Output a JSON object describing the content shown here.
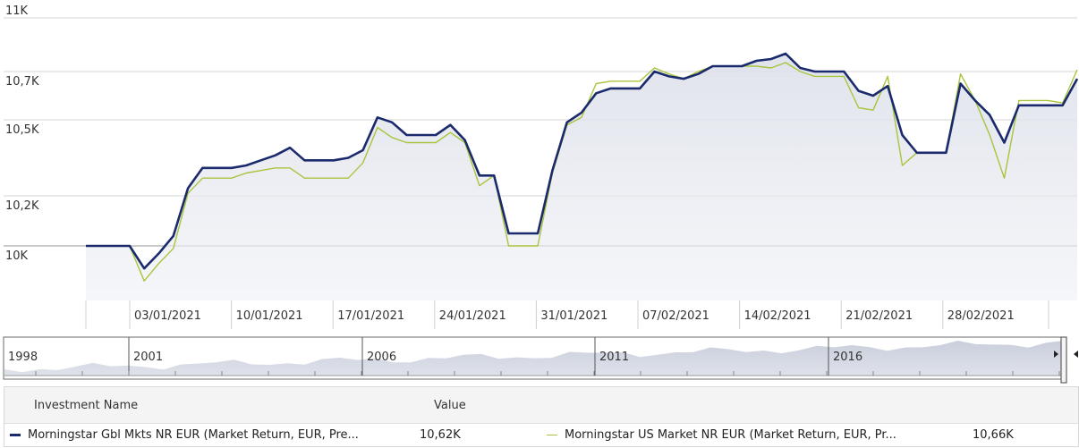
{
  "chart_data": {
    "type": "line",
    "y_ticks": [
      "11K",
      "10,7K",
      "10,5K",
      "10,2K",
      "10K"
    ],
    "x_ticks": [
      "03/01/2021",
      "10/01/2021",
      "17/01/2021",
      "24/01/2021",
      "31/01/2021",
      "07/02/2021",
      "14/02/2021",
      "21/02/2021",
      "28/02/2021"
    ],
    "series": [
      {
        "name": "Morningstar Gbl Mkts NR EUR (Market Return, EUR, Pre...",
        "color": "#1a2a6c",
        "values": [
          10000,
          10000,
          10000,
          10000,
          9910,
          9970,
          10040,
          10230,
          10310,
          10310,
          10310,
          10320,
          10340,
          10360,
          10390,
          10340,
          10340,
          10340,
          10350,
          10380,
          10510,
          10490,
          10440,
          10440,
          10440,
          10480,
          10420,
          10280,
          10280,
          10050,
          10050,
          10050,
          10300,
          10490,
          10530,
          10610,
          10630,
          10630,
          10630,
          10700,
          10680,
          10670,
          10690,
          10730,
          10730,
          10730,
          10760,
          10770,
          10800,
          10720,
          10700,
          10700,
          10700,
          10620,
          10600,
          10640,
          10440,
          10370,
          10370,
          10370,
          10650,
          10580,
          10520,
          10410,
          10560,
          10560,
          10560,
          10560,
          10670
        ]
      },
      {
        "name": "Morningstar US Market NR EUR (Market Return, EUR, Pr...",
        "color": "#a8c43c",
        "values": [
          10000,
          10000,
          10000,
          10000,
          9860,
          9930,
          9990,
          10210,
          10270,
          10270,
          10270,
          10290,
          10300,
          10310,
          10310,
          10270,
          10270,
          10270,
          10270,
          10330,
          10470,
          10430,
          10410,
          10410,
          10410,
          10450,
          10410,
          10240,
          10280,
          10000,
          10000,
          10000,
          10290,
          10480,
          10510,
          10650,
          10660,
          10660,
          10660,
          10720,
          10690,
          10670,
          10700,
          10730,
          10730,
          10730,
          10730,
          10720,
          10750,
          10700,
          10680,
          10680,
          10680,
          10550,
          10540,
          10680,
          10320,
          10370,
          10370,
          10370,
          10690,
          10580,
          10440,
          10270,
          10580,
          10580,
          10580,
          10570,
          10710
        ]
      }
    ],
    "navigator": {
      "labels": [
        "1998",
        "2001",
        "2006",
        "2011",
        "2016"
      ]
    },
    "legend": {
      "header_name": "Investment Name",
      "header_value": "Value",
      "entries": [
        {
          "name": "Morningstar Gbl Mkts NR EUR (Market Return, EUR, Pre...",
          "value": "10,62K",
          "color": "#1a2a6c"
        },
        {
          "name": "Morningstar US Market NR EUR (Market Return, EUR, Pr...",
          "value": "10,66K",
          "color": "#a8c43c"
        }
      ]
    }
  }
}
